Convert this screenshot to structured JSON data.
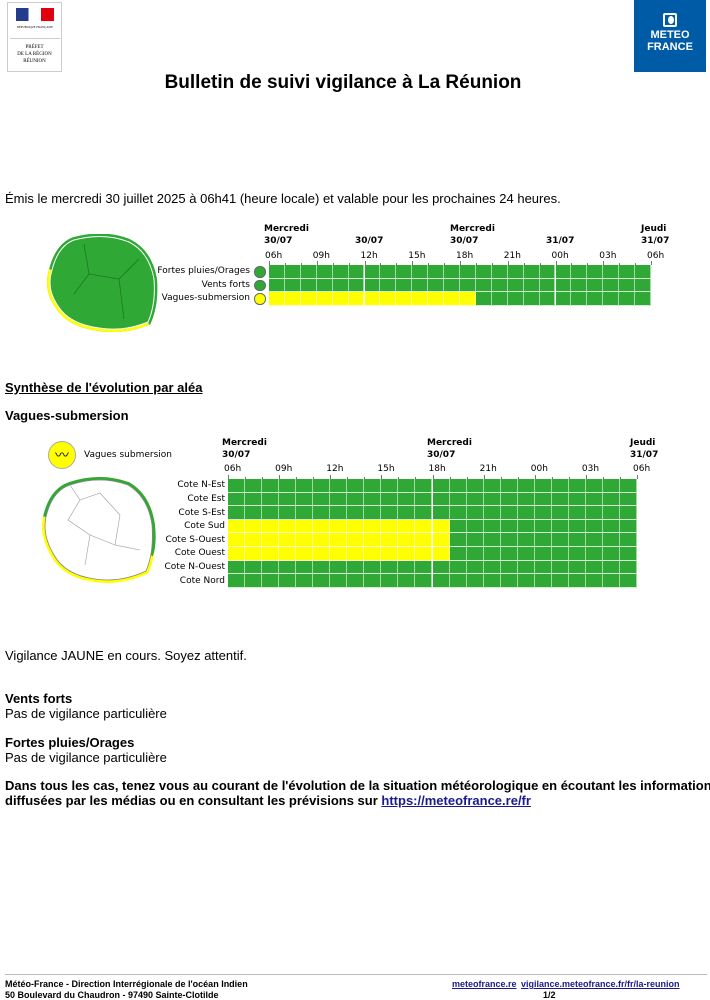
{
  "header": {
    "prefet_logo_text": [
      "PRÉFET",
      "DE LA RÉGION",
      "RÉUNION"
    ],
    "prefet_logo_subtitle": "RÉPUBLIQUE FRANÇAISE",
    "meteo_logo_text": [
      "METEO",
      "FRANCE"
    ],
    "title": "Bulletin de suivi vigilance à La Réunion"
  },
  "issued": "Émis le mercredi 30 juillet 2025 à 06h41 (heure locale) et valable pour les prochaines 24 heures.",
  "colors": {
    "green": "#2fa836",
    "yellow": "#ffff00",
    "map_green": "#2fa836",
    "brand_blue": "#005ba7"
  },
  "overview": {
    "day_labels": [
      [
        "Mercredi",
        "30/07"
      ],
      [
        "",
        "30/07"
      ],
      [
        "Mercredi",
        "30/07"
      ],
      [
        "",
        "31/07"
      ],
      [
        "Jeudi",
        "31/07"
      ]
    ],
    "hours": [
      "06h",
      "09h",
      "12h",
      "15h",
      "18h",
      "21h",
      "00h",
      "03h",
      "06h"
    ],
    "rows": [
      {
        "label": "Fortes pluies/Orages",
        "icon": "rain-storm-icon",
        "levels": [
          "green",
          24
        ]
      },
      {
        "label": "Vents forts",
        "icon": "wind-icon",
        "levels": [
          "green",
          24
        ]
      },
      {
        "label": "Vagues-submersion",
        "icon": "waves-icon",
        "levels": [
          "yellow",
          13,
          "green",
          11
        ]
      }
    ]
  },
  "synthese_title": "Synthèse de l'évolution par aléa",
  "vagues": {
    "title": "Vagues-submersion",
    "legend": "Vagues submersion",
    "day_labels": [
      [
        "Mercredi",
        "30/07"
      ],
      [
        "Mercredi",
        "30/07"
      ],
      [
        "Jeudi",
        "31/07"
      ]
    ],
    "hours": [
      "06h",
      "09h",
      "12h",
      "15h",
      "18h",
      "21h",
      "00h",
      "03h",
      "06h"
    ],
    "rows": [
      {
        "label": "Cote N-Est",
        "levels": [
          "green",
          24
        ]
      },
      {
        "label": "Cote Est",
        "levels": [
          "green",
          24
        ]
      },
      {
        "label": "Cote S-Est",
        "levels": [
          "green",
          24
        ]
      },
      {
        "label": "Cote Sud",
        "levels": [
          "yellow",
          13,
          "green",
          11
        ]
      },
      {
        "label": "Cote S-Ouest",
        "levels": [
          "yellow",
          13,
          "green",
          11
        ]
      },
      {
        "label": "Cote Ouest",
        "levels": [
          "yellow",
          13,
          "green",
          11
        ]
      },
      {
        "label": "Cote N-Ouest",
        "levels": [
          "green",
          24
        ]
      },
      {
        "label": "Cote Nord",
        "levels": [
          "green",
          24
        ]
      }
    ],
    "status": "Vigilance JAUNE en cours. Soyez attentif."
  },
  "vents": {
    "title": "Vents forts",
    "text": "Pas de vigilance particulière"
  },
  "pluies": {
    "title": "Fortes pluies/Orages",
    "text": "Pas de vigilance particulière"
  },
  "advice": {
    "line1": "Dans tous les cas, tenez vous au courant de l'évolution de la situation météorologique en écoutant les informations",
    "line2": "diffusées par les médias ou en consultant les prévisions sur ",
    "link": "https://meteofrance.re/fr"
  },
  "footer": {
    "org": "Météo-France - Direction Interrégionale de l'océan Indien",
    "address": "50 Boulevard du Chaudron - 97490 Sainte-Clotilde",
    "link1": "meteofrance.re",
    "link2": "vigilance.meteofrance.fr/fr/la-reunion",
    "page": "1/2"
  }
}
